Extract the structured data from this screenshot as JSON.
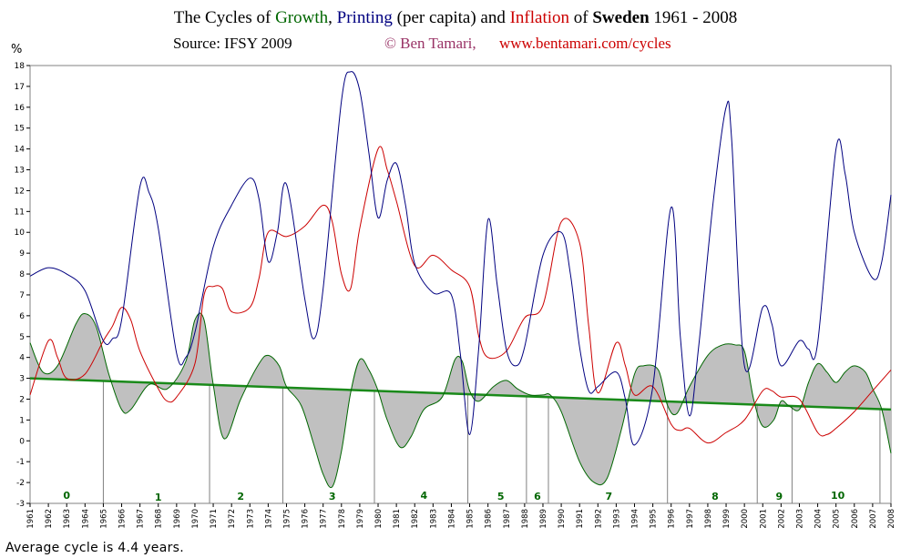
{
  "title": {
    "prefix": "The Cycles of ",
    "growth_word": "Growth",
    "comma": ", ",
    "printing_word": "Printing",
    "mid": " (per capita) and ",
    "inflation_word": "Inflation",
    "of": " of ",
    "country": "Sweden",
    "period": " 1961 - 2008"
  },
  "source": "Source: IFSY 2009",
  "copyright": "© Ben Tamari,",
  "url": "www.bentamari.com/cycles",
  "footer": "Average cycle is 4.4 years.",
  "colors": {
    "growth": "#006600",
    "printing": "#000080",
    "inflation": "#cc0000",
    "trend": "#1a8a1a",
    "fill": "#c0c0c0"
  },
  "chart_data": {
    "type": "line",
    "ylabel": "%",
    "ylim": [
      -3,
      18
    ],
    "yticks": [
      -3,
      -2,
      -1,
      0,
      1,
      2,
      3,
      4,
      5,
      6,
      7,
      8,
      9,
      10,
      11,
      12,
      13,
      14,
      15,
      16,
      17,
      18
    ],
    "xlim": [
      1961,
      2008
    ],
    "xticks": [
      1961,
      1962,
      1963,
      1964,
      1965,
      1966,
      1967,
      1968,
      1969,
      1970,
      1971,
      1972,
      1973,
      1974,
      1975,
      1976,
      1977,
      1978,
      1979,
      1980,
      1981,
      1982,
      1983,
      1984,
      1985,
      1986,
      1987,
      1988,
      1989,
      1990,
      1991,
      1992,
      1993,
      1994,
      1995,
      1996,
      1997,
      1998,
      1999,
      2000,
      2001,
      2002,
      2003,
      2004,
      2005,
      2006,
      2007,
      2008
    ],
    "series": [
      {
        "name": "Growth",
        "role": "growth",
        "points": [
          [
            1961,
            4.7
          ],
          [
            1961.7,
            3.3
          ],
          [
            1962.5,
            3.6
          ],
          [
            1963.5,
            5.6
          ],
          [
            1964,
            6.1
          ],
          [
            1964.6,
            5.5
          ],
          [
            1965.3,
            3.2
          ],
          [
            1966,
            1.5
          ],
          [
            1966.5,
            1.5
          ],
          [
            1967.5,
            2.7
          ],
          [
            1968.5,
            2.5
          ],
          [
            1969.5,
            3.8
          ],
          [
            1970,
            5.8
          ],
          [
            1970.5,
            5.8
          ],
          [
            1971,
            2.7
          ],
          [
            1971.6,
            0.1
          ],
          [
            1972.5,
            2.0
          ],
          [
            1973.5,
            3.7
          ],
          [
            1974,
            4.1
          ],
          [
            1974.6,
            3.6
          ],
          [
            1975,
            2.6
          ],
          [
            1975.8,
            1.7
          ],
          [
            1976.5,
            -0.2
          ],
          [
            1977,
            -1.6
          ],
          [
            1977.5,
            -2.2
          ],
          [
            1978,
            -0.5
          ],
          [
            1978.5,
            2.3
          ],
          [
            1979,
            3.9
          ],
          [
            1979.5,
            3.4
          ],
          [
            1980,
            2.4
          ],
          [
            1980.5,
            1.0
          ],
          [
            1981.2,
            -0.3
          ],
          [
            1981.8,
            0.2
          ],
          [
            1982.5,
            1.5
          ],
          [
            1983.5,
            2.1
          ],
          [
            1984.2,
            3.9
          ],
          [
            1984.6,
            3.8
          ],
          [
            1985,
            2.4
          ],
          [
            1985.5,
            1.9
          ],
          [
            1986.3,
            2.6
          ],
          [
            1987,
            2.9
          ],
          [
            1987.6,
            2.5
          ],
          [
            1988.3,
            2.2
          ],
          [
            1989,
            2.2
          ],
          [
            1989.4,
            2.2
          ],
          [
            1990,
            1.4
          ],
          [
            1991,
            -1.0
          ],
          [
            1991.8,
            -2.0
          ],
          [
            1992.5,
            -1.8
          ],
          [
            1993.3,
            0.6
          ],
          [
            1994,
            3.2
          ],
          [
            1994.5,
            3.6
          ],
          [
            1995.3,
            3.4
          ],
          [
            1995.8,
            1.7
          ],
          [
            1996.3,
            1.3
          ],
          [
            1997,
            2.6
          ],
          [
            1998,
            4.1
          ],
          [
            1998.8,
            4.6
          ],
          [
            1999.5,
            4.6
          ],
          [
            2000,
            4.3
          ],
          [
            2000.5,
            2.0
          ],
          [
            2001,
            0.7
          ],
          [
            2001.6,
            1.0
          ],
          [
            2002,
            1.9
          ],
          [
            2002.4,
            1.7
          ],
          [
            2003,
            1.5
          ],
          [
            2003.5,
            2.8
          ],
          [
            2004,
            3.7
          ],
          [
            2004.5,
            3.3
          ],
          [
            2005,
            2.8
          ],
          [
            2005.5,
            3.3
          ],
          [
            2006,
            3.6
          ],
          [
            2006.6,
            3.3
          ],
          [
            2007,
            2.5
          ],
          [
            2007.5,
            1.5
          ],
          [
            2008,
            -0.6
          ]
        ]
      },
      {
        "name": "Printing (per capita)",
        "role": "printing",
        "points": [
          [
            1961,
            7.9
          ],
          [
            1962,
            8.3
          ],
          [
            1963,
            8.0
          ],
          [
            1964,
            7.2
          ],
          [
            1965,
            4.8
          ],
          [
            1965.5,
            4.9
          ],
          [
            1966,
            5.8
          ],
          [
            1967,
            12.2
          ],
          [
            1967.5,
            11.9
          ],
          [
            1968,
            10.2
          ],
          [
            1969,
            4.2
          ],
          [
            1969.5,
            4.0
          ],
          [
            1970,
            5.2
          ],
          [
            1971,
            9.3
          ],
          [
            1972,
            11.3
          ],
          [
            1973,
            12.6
          ],
          [
            1973.5,
            11.6
          ],
          [
            1974,
            8.6
          ],
          [
            1974.5,
            10.0
          ],
          [
            1975,
            12.3
          ],
          [
            1976,
            6.8
          ],
          [
            1976.5,
            4.9
          ],
          [
            1977,
            7.3
          ],
          [
            1978,
            16.3
          ],
          [
            1978.5,
            17.7
          ],
          [
            1979,
            16.8
          ],
          [
            1979.5,
            13.8
          ],
          [
            1980,
            10.7
          ],
          [
            1980.5,
            12.5
          ],
          [
            1981,
            13.3
          ],
          [
            1981.5,
            11.3
          ],
          [
            1982,
            8.5
          ],
          [
            1983,
            7.1
          ],
          [
            1984,
            7.0
          ],
          [
            1984.5,
            4.1
          ],
          [
            1985,
            0.3
          ],
          [
            1985.5,
            4.5
          ],
          [
            1986,
            10.6
          ],
          [
            1986.5,
            7.5
          ],
          [
            1987,
            4.4
          ],
          [
            1987.5,
            3.6
          ],
          [
            1988,
            4.5
          ],
          [
            1989,
            8.9
          ],
          [
            1990,
            10.0
          ],
          [
            1990.5,
            8.0
          ],
          [
            1991,
            4.5
          ],
          [
            1991.5,
            2.4
          ],
          [
            1992,
            2.6
          ],
          [
            1993,
            3.3
          ],
          [
            1993.5,
            2.0
          ],
          [
            1994,
            -0.2
          ],
          [
            1995,
            2.6
          ],
          [
            1996,
            11.2
          ],
          [
            1996.5,
            5.0
          ],
          [
            1997,
            1.2
          ],
          [
            1997.5,
            4.5
          ],
          [
            1998.3,
            11.5
          ],
          [
            1999,
            16.0
          ],
          [
            1999.3,
            14.5
          ],
          [
            2000,
            3.6
          ],
          [
            2001,
            6.4
          ],
          [
            2001.5,
            5.6
          ],
          [
            2002,
            3.6
          ],
          [
            2003,
            4.8
          ],
          [
            2003.5,
            4.4
          ],
          [
            2004,
            4.7
          ],
          [
            2005,
            14.0
          ],
          [
            2005.5,
            12.8
          ],
          [
            2006,
            10.0
          ],
          [
            2007,
            7.8
          ],
          [
            2007.5,
            8.6
          ],
          [
            2008,
            11.8
          ]
        ]
      },
      {
        "name": "Inflation",
        "role": "inflation",
        "points": [
          [
            1961,
            2.2
          ],
          [
            1962,
            4.8
          ],
          [
            1962.5,
            4.0
          ],
          [
            1963,
            3.0
          ],
          [
            1964,
            3.2
          ],
          [
            1965,
            4.8
          ],
          [
            1965.5,
            5.5
          ],
          [
            1966,
            6.4
          ],
          [
            1966.5,
            5.8
          ],
          [
            1967,
            4.3
          ],
          [
            1968,
            2.5
          ],
          [
            1968.5,
            1.9
          ],
          [
            1969,
            2.1
          ],
          [
            1970,
            3.7
          ],
          [
            1970.5,
            7.0
          ],
          [
            1971,
            7.4
          ],
          [
            1971.5,
            7.3
          ],
          [
            1972,
            6.2
          ],
          [
            1973,
            6.4
          ],
          [
            1973.5,
            7.8
          ],
          [
            1974,
            10.0
          ],
          [
            1975,
            9.8
          ],
          [
            1976,
            10.3
          ],
          [
            1977,
            11.3
          ],
          [
            1977.5,
            10.5
          ],
          [
            1978,
            8.0
          ],
          [
            1978.5,
            7.3
          ],
          [
            1979,
            10.2
          ],
          [
            1980,
            14.0
          ],
          [
            1980.5,
            13.0
          ],
          [
            1981,
            11.5
          ],
          [
            1982,
            8.4
          ],
          [
            1983,
            8.9
          ],
          [
            1984,
            8.2
          ],
          [
            1985,
            7.4
          ],
          [
            1985.5,
            5.0
          ],
          [
            1986,
            4.0
          ],
          [
            1987,
            4.3
          ],
          [
            1988,
            5.9
          ],
          [
            1989,
            6.5
          ],
          [
            1990,
            10.5
          ],
          [
            1991,
            9.5
          ],
          [
            1991.5,
            5.5
          ],
          [
            1992,
            2.3
          ],
          [
            1993,
            4.7
          ],
          [
            1993.5,
            3.6
          ],
          [
            1994,
            2.2
          ],
          [
            1995,
            2.6
          ],
          [
            1996,
            0.8
          ],
          [
            1996.5,
            0.5
          ],
          [
            1997,
            0.6
          ],
          [
            1998,
            -0.1
          ],
          [
            1999,
            0.4
          ],
          [
            2000,
            1.0
          ],
          [
            2001,
            2.4
          ],
          [
            2001.5,
            2.4
          ],
          [
            2002,
            2.1
          ],
          [
            2003,
            2.0
          ],
          [
            2004,
            0.4
          ],
          [
            2004.5,
            0.3
          ],
          [
            2005,
            0.6
          ],
          [
            2006,
            1.4
          ],
          [
            2007,
            2.4
          ],
          [
            2008,
            3.4
          ]
        ]
      },
      {
        "name": "Trend",
        "role": "trend",
        "points": [
          [
            1961,
            3.0
          ],
          [
            2008,
            1.5
          ]
        ]
      }
    ],
    "cycles": {
      "dividers": [
        1965,
        1970.8,
        1974.8,
        1979.8,
        1984.9,
        1988.1,
        1989.3,
        1995.8,
        2000.7,
        2002.6,
        2007.4
      ],
      "labels": [
        {
          "text": "0",
          "x": 1963,
          "y": -2.6
        },
        {
          "text": "1",
          "x": 1968,
          "y": -2.7
        },
        {
          "text": "2",
          "x": 1972.5,
          "y": -2.65
        },
        {
          "text": "3",
          "x": 1977.5,
          "y": -2.65
        },
        {
          "text": "4",
          "x": 1982.5,
          "y": -2.6
        },
        {
          "text": "5",
          "x": 1986.7,
          "y": -2.65
        },
        {
          "text": "6",
          "x": 1988.7,
          "y": -2.65
        },
        {
          "text": "7",
          "x": 1992.6,
          "y": -2.65
        },
        {
          "text": "8",
          "x": 1998.4,
          "y": -2.65
        },
        {
          "text": "9",
          "x": 2001.9,
          "y": -2.65
        },
        {
          "text": "10",
          "x": 2005.1,
          "y": -2.6
        }
      ]
    }
  }
}
